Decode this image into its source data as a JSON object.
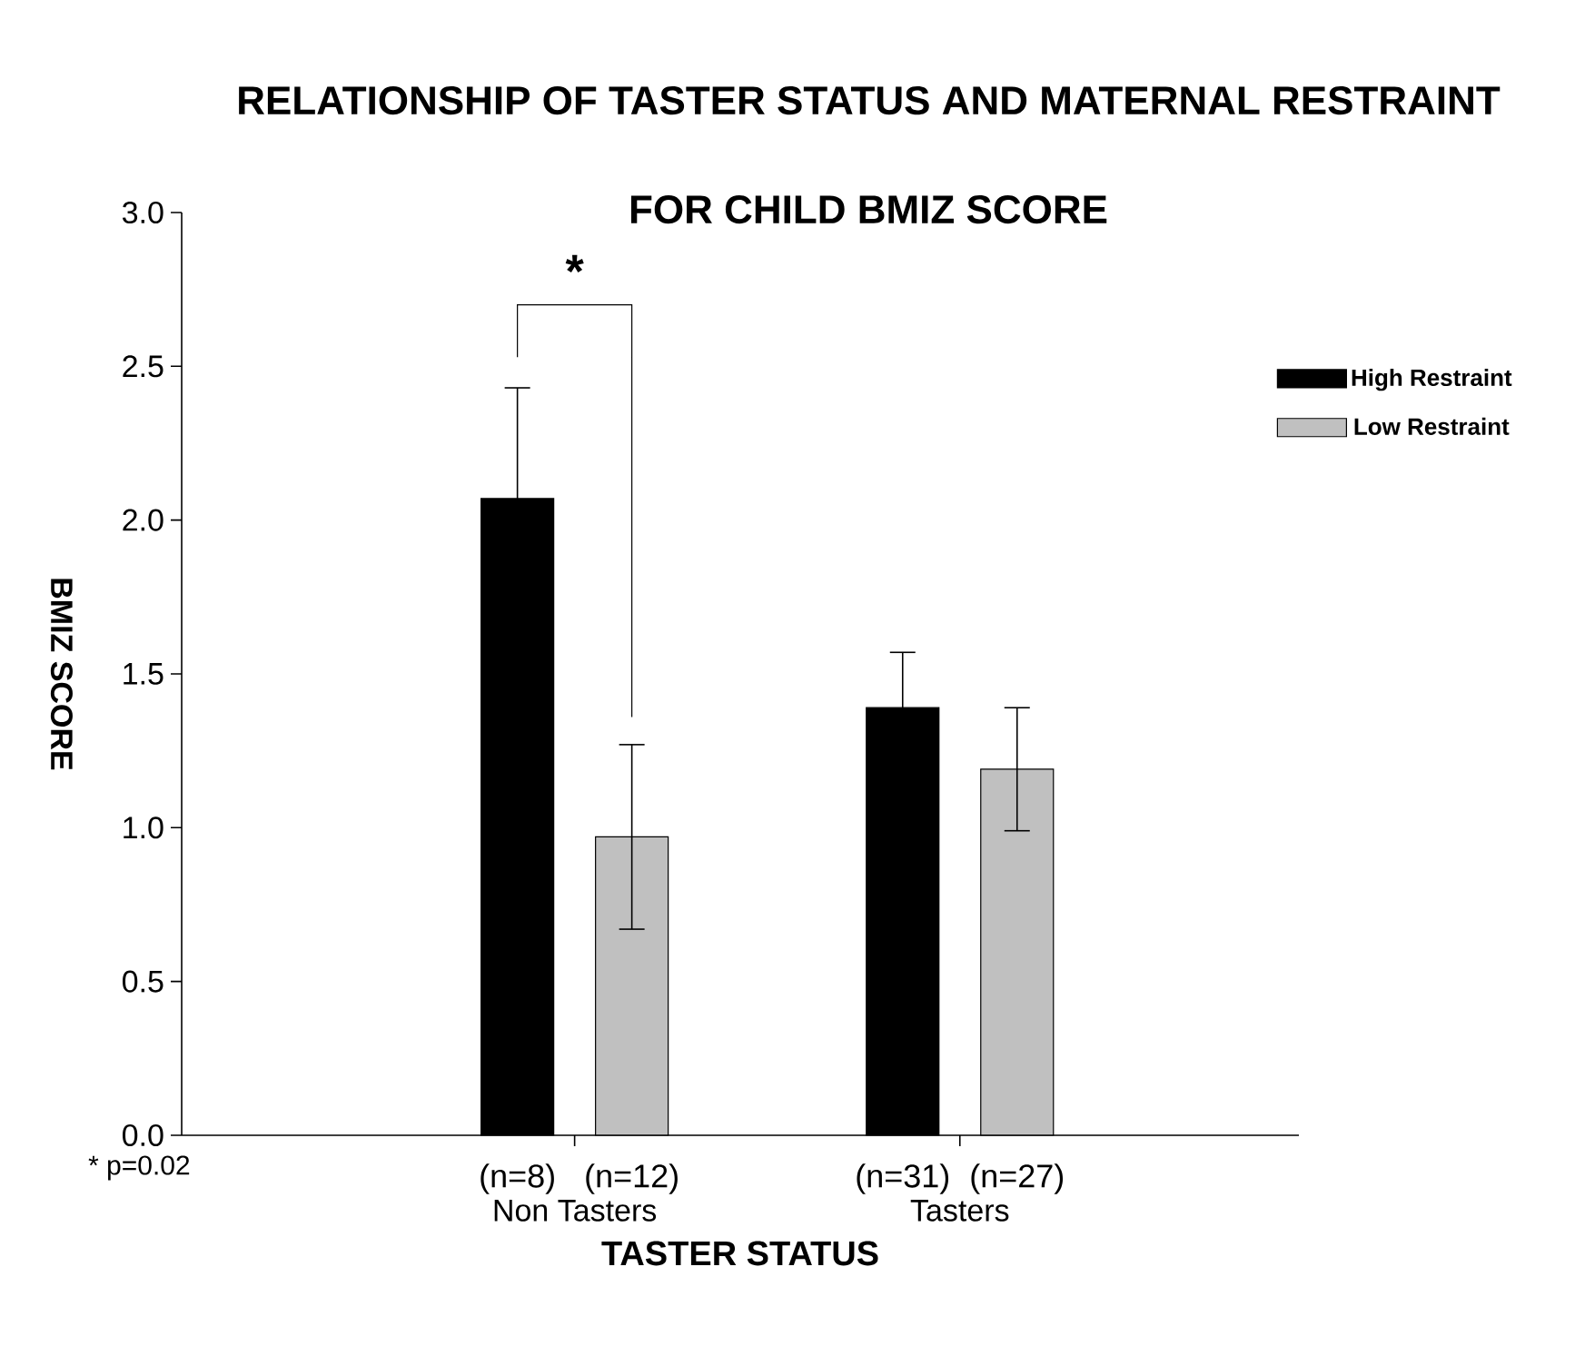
{
  "chart_data": {
    "type": "bar",
    "title": "RELATIONSHIP OF TASTER STATUS AND MATERNAL RESTRAINT FOR CHILD BMIZ SCORE",
    "xlabel": "TASTER STATUS",
    "ylabel": "BMIZ SCORE",
    "categories": [
      "Non Tasters",
      "Tasters"
    ],
    "series": [
      {
        "name": "High Restraint",
        "color": "#000000",
        "values": [
          2.07,
          1.39
        ],
        "errors": [
          0.36,
          0.18
        ]
      },
      {
        "name": "Low Restraint",
        "color": "#c0c0c0",
        "values": [
          0.97,
          1.19
        ],
        "errors": [
          0.3,
          0.2
        ]
      }
    ],
    "ylim": [
      0,
      3
    ],
    "yticks": [
      {
        "value": 0,
        "label": "0.0"
      },
      {
        "value": 0.5,
        "label": "0.5"
      },
      {
        "value": 1,
        "label": "1.0"
      },
      {
        "value": 1.5,
        "label": "1.5"
      },
      {
        "value": 2,
        "label": "2.0"
      },
      {
        "value": 2.5,
        "label": "2.5"
      },
      {
        "value": 3,
        "label": "3.0"
      }
    ],
    "legend": "top right",
    "grid": false,
    "annotations": [
      "(n=8)",
      "(n=12)",
      "(n=31)",
      "(n=27)",
      "*",
      "* p=0.02"
    ]
  }
}
